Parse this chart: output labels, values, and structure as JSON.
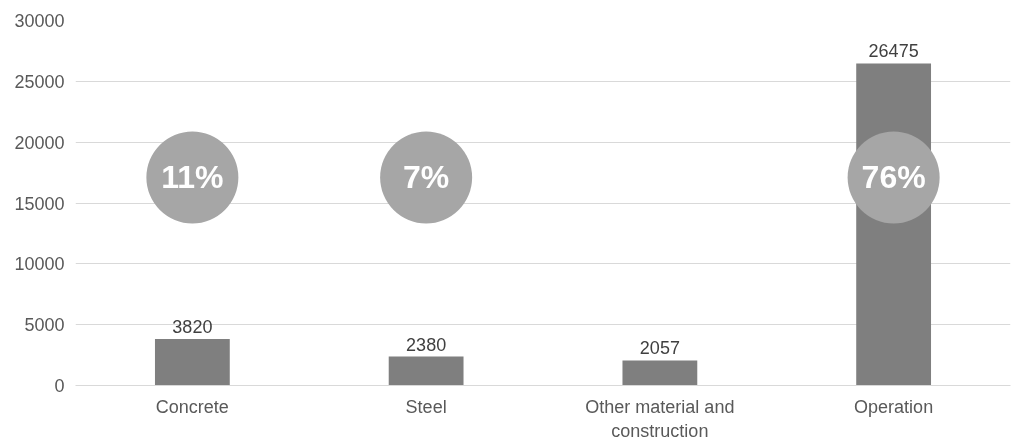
{
  "chart_data": {
    "type": "bar",
    "categories": [
      "Concrete",
      "Steel",
      "Other material and construction",
      "Operation"
    ],
    "values": [
      3820,
      2380,
      2057,
      26475
    ],
    "color": "#7f7f7f",
    "ylim": [
      0,
      30000
    ],
    "yticks": [
      0,
      5000,
      10000,
      15000,
      20000,
      25000,
      30000
    ],
    "grid": "y",
    "data_labels": true,
    "annotations": [
      "11%",
      "7%",
      "76%"
    ]
  }
}
